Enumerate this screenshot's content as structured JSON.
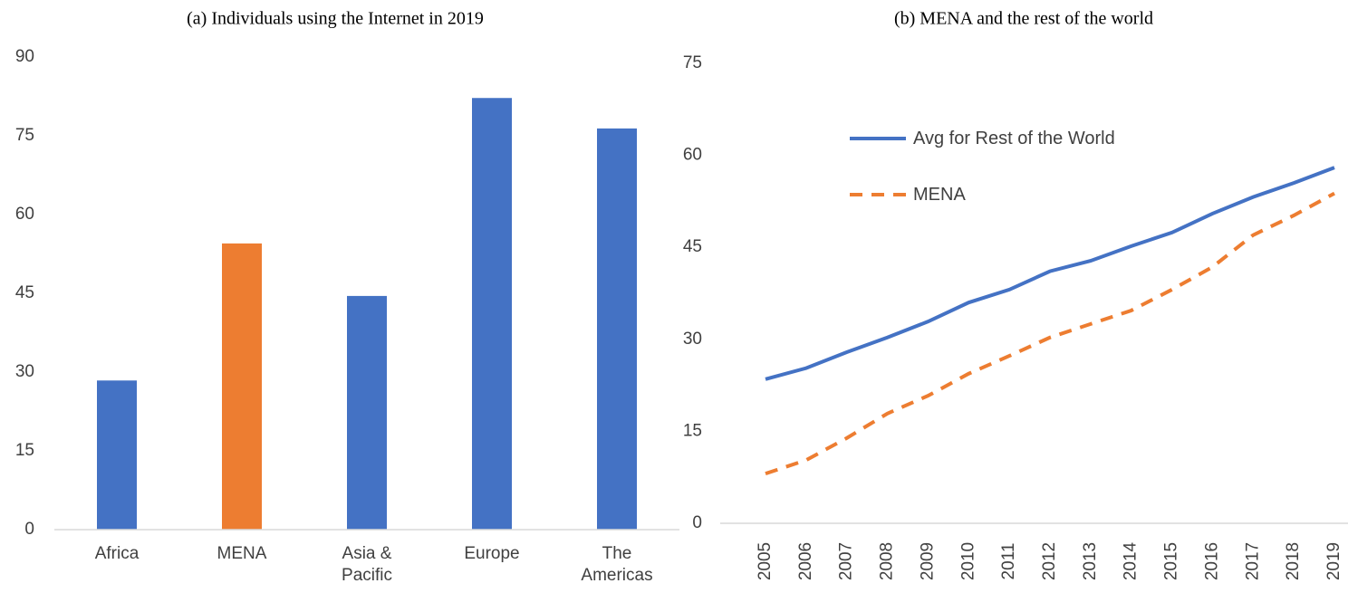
{
  "chart_data": [
    {
      "type": "bar",
      "title": "(a) Individuals using the Internet in 2019",
      "categories": [
        "Africa",
        "MENA",
        "Asia & Pacific",
        "Europe",
        "The Americas"
      ],
      "values": [
        28.4,
        54.5,
        44.5,
        82.2,
        76.4
      ],
      "colors": [
        "#4472c4",
        "#ed7d31",
        "#4472c4",
        "#4472c4",
        "#4472c4"
      ],
      "ylim": [
        0,
        90
      ],
      "yticks": [
        0,
        15,
        30,
        45,
        60,
        75,
        90
      ],
      "grid": false
    },
    {
      "type": "line",
      "title": "(b) MENA and the rest of the world",
      "categories": [
        "2005",
        "2006",
        "2007",
        "2008",
        "2009",
        "2010",
        "2011",
        "2012",
        "2013",
        "2014",
        "2015",
        "2016",
        "2017",
        "2018",
        "2019"
      ],
      "series": [
        {
          "name": "Avg for Rest of the World",
          "color": "#4472c4",
          "dash": false,
          "values": [
            23.5,
            25.3,
            27.9,
            30.3,
            32.9,
            36.0,
            38.1,
            41.1,
            42.8,
            45.2,
            47.4,
            50.5,
            53.2,
            55.5,
            58.0
          ]
        },
        {
          "name": "MENA",
          "color": "#ed7d31",
          "dash": true,
          "values": [
            8.1,
            10.3,
            13.9,
            17.9,
            20.8,
            24.4,
            27.3,
            30.3,
            32.5,
            34.7,
            38.1,
            41.8,
            47.0,
            50.2,
            53.8
          ]
        }
      ],
      "ylim": [
        0,
        75
      ],
      "yticks": [
        0,
        15,
        30,
        45,
        60,
        75
      ],
      "grid": false
    }
  ]
}
